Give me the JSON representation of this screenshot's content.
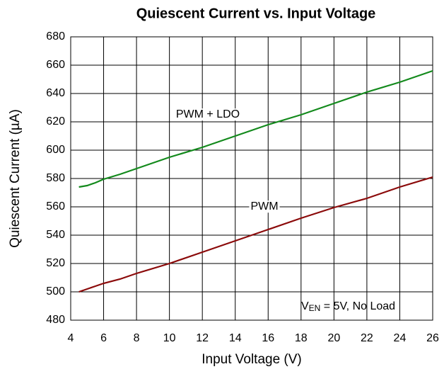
{
  "chart_data": {
    "type": "line",
    "title": "Quiescent Current vs. Input Voltage",
    "x_label": "Input Voltage (V)",
    "y_label": "Quiescent Current (µA)",
    "annotation": {
      "main": "V",
      "sub": "EN",
      "rest": " = 5V, No Load"
    },
    "xlim": [
      4,
      26
    ],
    "xticks": [
      4,
      6,
      8,
      10,
      12,
      14,
      16,
      18,
      20,
      22,
      24,
      26
    ],
    "ylim": [
      480,
      680
    ],
    "yticks": [
      480,
      500,
      520,
      540,
      560,
      580,
      600,
      620,
      640,
      660,
      680
    ],
    "grid": true,
    "x": [
      4.5,
      5,
      5.5,
      6,
      7,
      8,
      10,
      12,
      14,
      16,
      18,
      20,
      22,
      24,
      26
    ],
    "series": [
      {
        "name": "PWM + LDO",
        "color": "#138a1c",
        "values": [
          574,
          575,
          577,
          579.5,
          583,
          587,
          595,
          602,
          610,
          618,
          625,
          633,
          641,
          648,
          656
        ]
      },
      {
        "name": "PWM",
        "color": "#8b0a0a",
        "values": [
          500,
          502,
          504,
          506,
          509,
          513,
          520,
          528,
          536,
          544,
          552,
          559.5,
          566,
          574,
          581
        ]
      }
    ]
  }
}
